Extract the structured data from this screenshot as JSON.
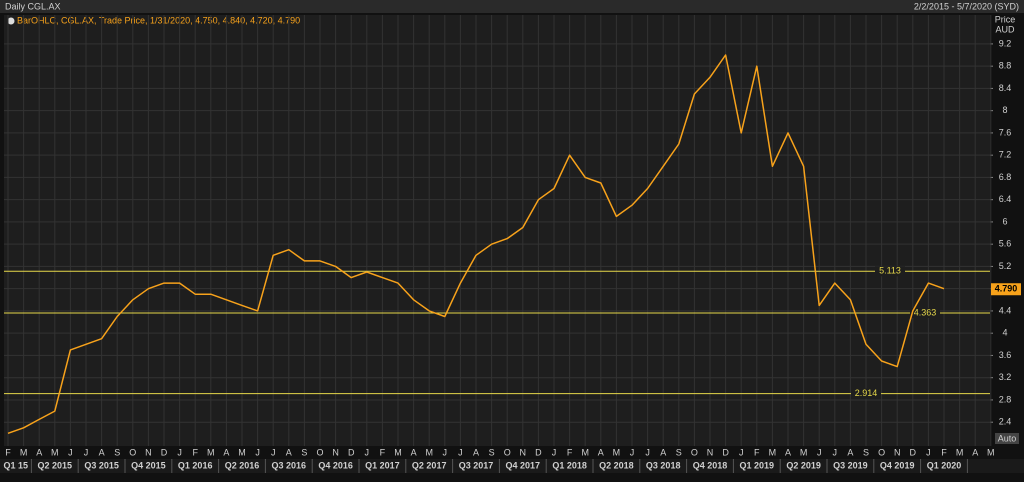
{
  "chart_data": {
    "type": "line",
    "title": "Daily CGL.AX",
    "date_range": "2/2/2015 - 5/7/2020 (SYD)",
    "legend_text": "BarOHLC, CGL.AX, Trade Price, 1/31/2020, 4.750, 4.840, 4.720, 4.790",
    "y_axis_title": "Price",
    "y_axis_unit": "AUD",
    "auto_label": "Auto",
    "categories": [
      "F",
      "M",
      "A",
      "M",
      "J",
      "J",
      "A",
      "S",
      "O",
      "N",
      "D",
      "J",
      "F",
      "M",
      "A",
      "M",
      "J",
      "J",
      "A",
      "S",
      "O",
      "N",
      "D",
      "J",
      "F",
      "M",
      "A",
      "M",
      "J",
      "J",
      "A",
      "S",
      "O",
      "N",
      "D",
      "J",
      "F",
      "M",
      "A",
      "M",
      "J",
      "J",
      "A",
      "S",
      "O",
      "N",
      "D",
      "J",
      "F",
      "M",
      "A",
      "M",
      "J",
      "J",
      "A",
      "S",
      "O",
      "N",
      "D",
      "J",
      "F",
      "M",
      "A",
      "M"
    ],
    "quarter_labels": [
      "Q1 15",
      "Q2 2015",
      "Q3 2015",
      "Q4 2015",
      "Q1 2016",
      "Q2 2016",
      "Q3 2016",
      "Q4 2016",
      "Q1 2017",
      "Q2 2017",
      "Q3 2017",
      "Q4 2017",
      "Q1 2018",
      "Q2 2018",
      "Q3 2018",
      "Q4 2018",
      "Q1 2019",
      "Q2 2019",
      "Q3 2019",
      "Q4 2019",
      "Q1 2020"
    ],
    "series": [
      {
        "name": "CGL.AX",
        "color": "#f7a21b",
        "values": [
          2.2,
          2.3,
          2.45,
          2.6,
          3.7,
          3.8,
          3.9,
          4.3,
          4.6,
          4.8,
          4.9,
          4.9,
          4.7,
          4.7,
          4.6,
          4.5,
          4.4,
          5.4,
          5.5,
          5.3,
          5.3,
          5.2,
          5.0,
          5.1,
          5.0,
          4.9,
          4.6,
          4.4,
          4.3,
          4.9,
          5.4,
          5.6,
          5.7,
          5.9,
          6.4,
          6.6,
          7.2,
          6.8,
          6.7,
          6.1,
          6.3,
          6.6,
          7.0,
          7.4,
          8.3,
          8.6,
          9.0,
          7.6,
          8.8,
          7.0,
          7.6,
          7.0,
          4.5,
          4.9,
          4.6,
          3.8,
          3.5,
          3.4,
          4.4,
          4.9,
          4.8,
          null,
          null,
          null
        ]
      }
    ],
    "last_price": {
      "value": 4.79,
      "label": "4.790"
    },
    "hlines": [
      5.113,
      4.363,
      2.914
    ],
    "hline_color": "#e6d84a",
    "ylim": [
      1.99,
      9.54
    ],
    "yticks": [
      2.4,
      2.8,
      3.2,
      3.6,
      4,
      4.4,
      4.8,
      5.2,
      5.6,
      6,
      6.4,
      6.8,
      7.2,
      7.6,
      8,
      8.4,
      8.8,
      9.2
    ],
    "grid": true
  }
}
